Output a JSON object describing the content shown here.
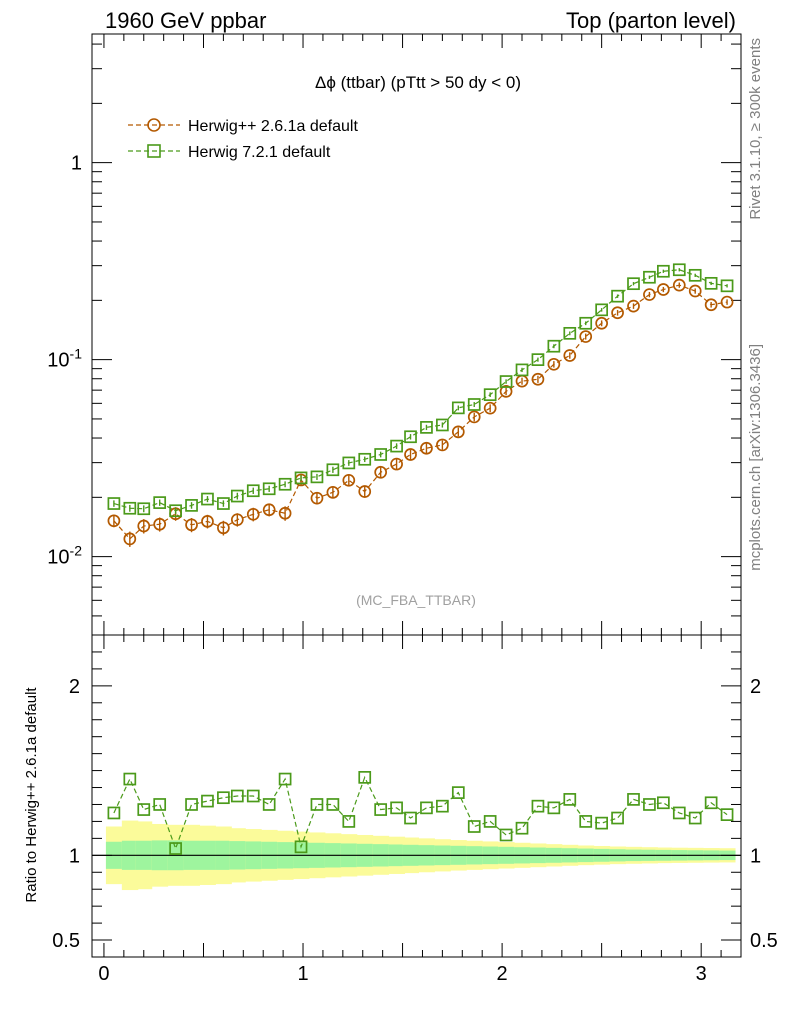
{
  "header": {
    "left": "1960 GeV ppbar",
    "right": "Top (parton level)"
  },
  "side_labels": {
    "rivet": "Rivet 3.1.10, ≥ 300k events",
    "mcplots": "mcplots.cern.ch [arXiv:1306.3436]"
  },
  "main_title": "Δϕ (ttbar) (pTtt > 50 dy < 0)",
  "watermark": "(MC_FBA_TTBAR)",
  "legend": [
    {
      "label": "Herwig++ 2.6.1a default",
      "color": "#b35900",
      "marker": "circle"
    },
    {
      "label": "Herwig 7.2.1 default",
      "color": "#4b9a1a",
      "marker": "square"
    }
  ],
  "colors": {
    "herwigpp": "#b35900",
    "herwig7": "#4b9a1a",
    "band_inner": "#9ef59e",
    "band_outer": "#fbfb9a"
  },
  "chart_data": [
    {
      "type": "scatter",
      "panel": "main",
      "xlim": [
        -0.06,
        3.2
      ],
      "ylim": [
        0.004,
        4.5
      ],
      "yscale": "log",
      "ytick_labels": [
        "10^-2",
        "10^-1",
        "1"
      ],
      "x": [
        0.05,
        0.13,
        0.2,
        0.28,
        0.36,
        0.44,
        0.52,
        0.6,
        0.67,
        0.75,
        0.83,
        0.91,
        0.99,
        1.07,
        1.15,
        1.23,
        1.31,
        1.39,
        1.47,
        1.54,
        1.62,
        1.7,
        1.78,
        1.86,
        1.94,
        2.02,
        2.1,
        2.18,
        2.26,
        2.34,
        2.42,
        2.5,
        2.58,
        2.66,
        2.74,
        2.81,
        2.89,
        2.97,
        3.05,
        3.13
      ],
      "series": [
        {
          "name": "Herwig++ 2.6.1a default",
          "values": [
            0.0152,
            0.0123,
            0.0143,
            0.0146,
            0.0165,
            0.0145,
            0.0151,
            0.014,
            0.0154,
            0.0164,
            0.0173,
            0.0166,
            0.0245,
            0.0198,
            0.0212,
            0.0244,
            0.0214,
            0.0268,
            0.0295,
            0.033,
            0.0355,
            0.0369,
            0.043,
            0.0512,
            0.0567,
            0.069,
            0.0778,
            0.0795,
            0.0947,
            0.105,
            0.131,
            0.153,
            0.173,
            0.187,
            0.214,
            0.227,
            0.239,
            0.223,
            0.19,
            0.196
          ],
          "errors": [
            0.0011,
            0.0011,
            0.0012,
            0.0012,
            0.0013,
            0.0012,
            0.0012,
            0.0012,
            0.0012,
            0.0013,
            0.0013,
            0.0014,
            0.0016,
            0.0014,
            0.0015,
            0.0016,
            0.0015,
            0.0017,
            0.0018,
            0.0019,
            0.002,
            0.002,
            0.0022,
            0.0025,
            0.0026,
            0.003,
            0.0032,
            0.0033,
            0.0036,
            0.0039,
            0.0046,
            0.0052,
            0.0057,
            0.006,
            0.0066,
            0.0069,
            0.0073,
            0.0069,
            0.0062,
            0.0063
          ]
        },
        {
          "name": "Herwig 7.2.1 default",
          "values": [
            0.0186,
            0.0176,
            0.0175,
            0.0188,
            0.0171,
            0.0182,
            0.0196,
            0.0186,
            0.0203,
            0.0216,
            0.0221,
            0.0233,
            0.0251,
            0.0254,
            0.0276,
            0.0299,
            0.0312,
            0.033,
            0.0364,
            0.0406,
            0.0453,
            0.0466,
            0.0569,
            0.0592,
            0.0664,
            0.0774,
            0.0887,
            0.1,
            0.117,
            0.136,
            0.153,
            0.179,
            0.21,
            0.243,
            0.262,
            0.281,
            0.286,
            0.268,
            0.244,
            0.237
          ],
          "errors": [
            0.0007,
            0.0007,
            0.0007,
            0.0007,
            0.0007,
            0.0007,
            0.0007,
            0.0007,
            0.0008,
            0.0008,
            0.0008,
            0.0008,
            0.0009,
            0.0009,
            0.001,
            0.001,
            0.001,
            0.0011,
            0.0012,
            0.0013,
            0.0014,
            0.0014,
            0.0016,
            0.0017,
            0.0018,
            0.002,
            0.0022,
            0.0024,
            0.0027,
            0.003,
            0.0033,
            0.0037,
            0.0042,
            0.0047,
            0.005,
            0.0053,
            0.0054,
            0.0051,
            0.0047,
            0.0046
          ]
        }
      ]
    },
    {
      "type": "scatter",
      "panel": "ratio",
      "xlim": [
        -0.06,
        3.2
      ],
      "ylim": [
        0.4,
        2.3
      ],
      "ylabel": "Ratio to Herwig++ 2.6.1a default",
      "xtick_labels": [
        "0",
        "1",
        "2",
        "3"
      ],
      "ytick_labels": [
        "0.5",
        "1",
        "2"
      ],
      "reference_line": 1,
      "x": [
        0.05,
        0.13,
        0.2,
        0.28,
        0.36,
        0.44,
        0.52,
        0.6,
        0.67,
        0.75,
        0.83,
        0.91,
        0.99,
        1.07,
        1.15,
        1.23,
        1.31,
        1.39,
        1.47,
        1.54,
        1.62,
        1.7,
        1.78,
        1.86,
        1.94,
        2.02,
        2.1,
        2.18,
        2.26,
        2.34,
        2.42,
        2.5,
        2.58,
        2.66,
        2.74,
        2.81,
        2.89,
        2.97,
        3.05,
        3.13
      ],
      "series": [
        {
          "name": "Herwig 7.2.1 default",
          "values": [
            1.25,
            1.45,
            1.27,
            1.3,
            1.04,
            1.3,
            1.32,
            1.34,
            1.35,
            1.35,
            1.3,
            1.45,
            1.05,
            1.3,
            1.3,
            1.2,
            1.46,
            1.27,
            1.28,
            1.22,
            1.28,
            1.29,
            1.37,
            1.17,
            1.2,
            1.12,
            1.16,
            1.29,
            1.28,
            1.33,
            1.2,
            1.19,
            1.22,
            1.33,
            1.3,
            1.31,
            1.25,
            1.22,
            1.31,
            1.24
          ]
        }
      ],
      "bands": {
        "inner": [
          0.08,
          0.086,
          0.086,
          0.088,
          0.088,
          0.086,
          0.086,
          0.086,
          0.084,
          0.082,
          0.08,
          0.078,
          0.076,
          0.074,
          0.072,
          0.07,
          0.068,
          0.066,
          0.064,
          0.062,
          0.06,
          0.058,
          0.056,
          0.054,
          0.052,
          0.05,
          0.048,
          0.046,
          0.044,
          0.042,
          0.04,
          0.038,
          0.036,
          0.034,
          0.033,
          0.032,
          0.031,
          0.03,
          0.029,
          0.028
        ],
        "outer": [
          0.17,
          0.205,
          0.2,
          0.185,
          0.18,
          0.18,
          0.175,
          0.17,
          0.16,
          0.155,
          0.15,
          0.145,
          0.14,
          0.135,
          0.13,
          0.125,
          0.12,
          0.115,
          0.11,
          0.105,
          0.1,
          0.095,
          0.09,
          0.086,
          0.082,
          0.078,
          0.074,
          0.07,
          0.066,
          0.062,
          0.058,
          0.055,
          0.052,
          0.05,
          0.048,
          0.046,
          0.045,
          0.044,
          0.043,
          0.042
        ]
      }
    }
  ]
}
